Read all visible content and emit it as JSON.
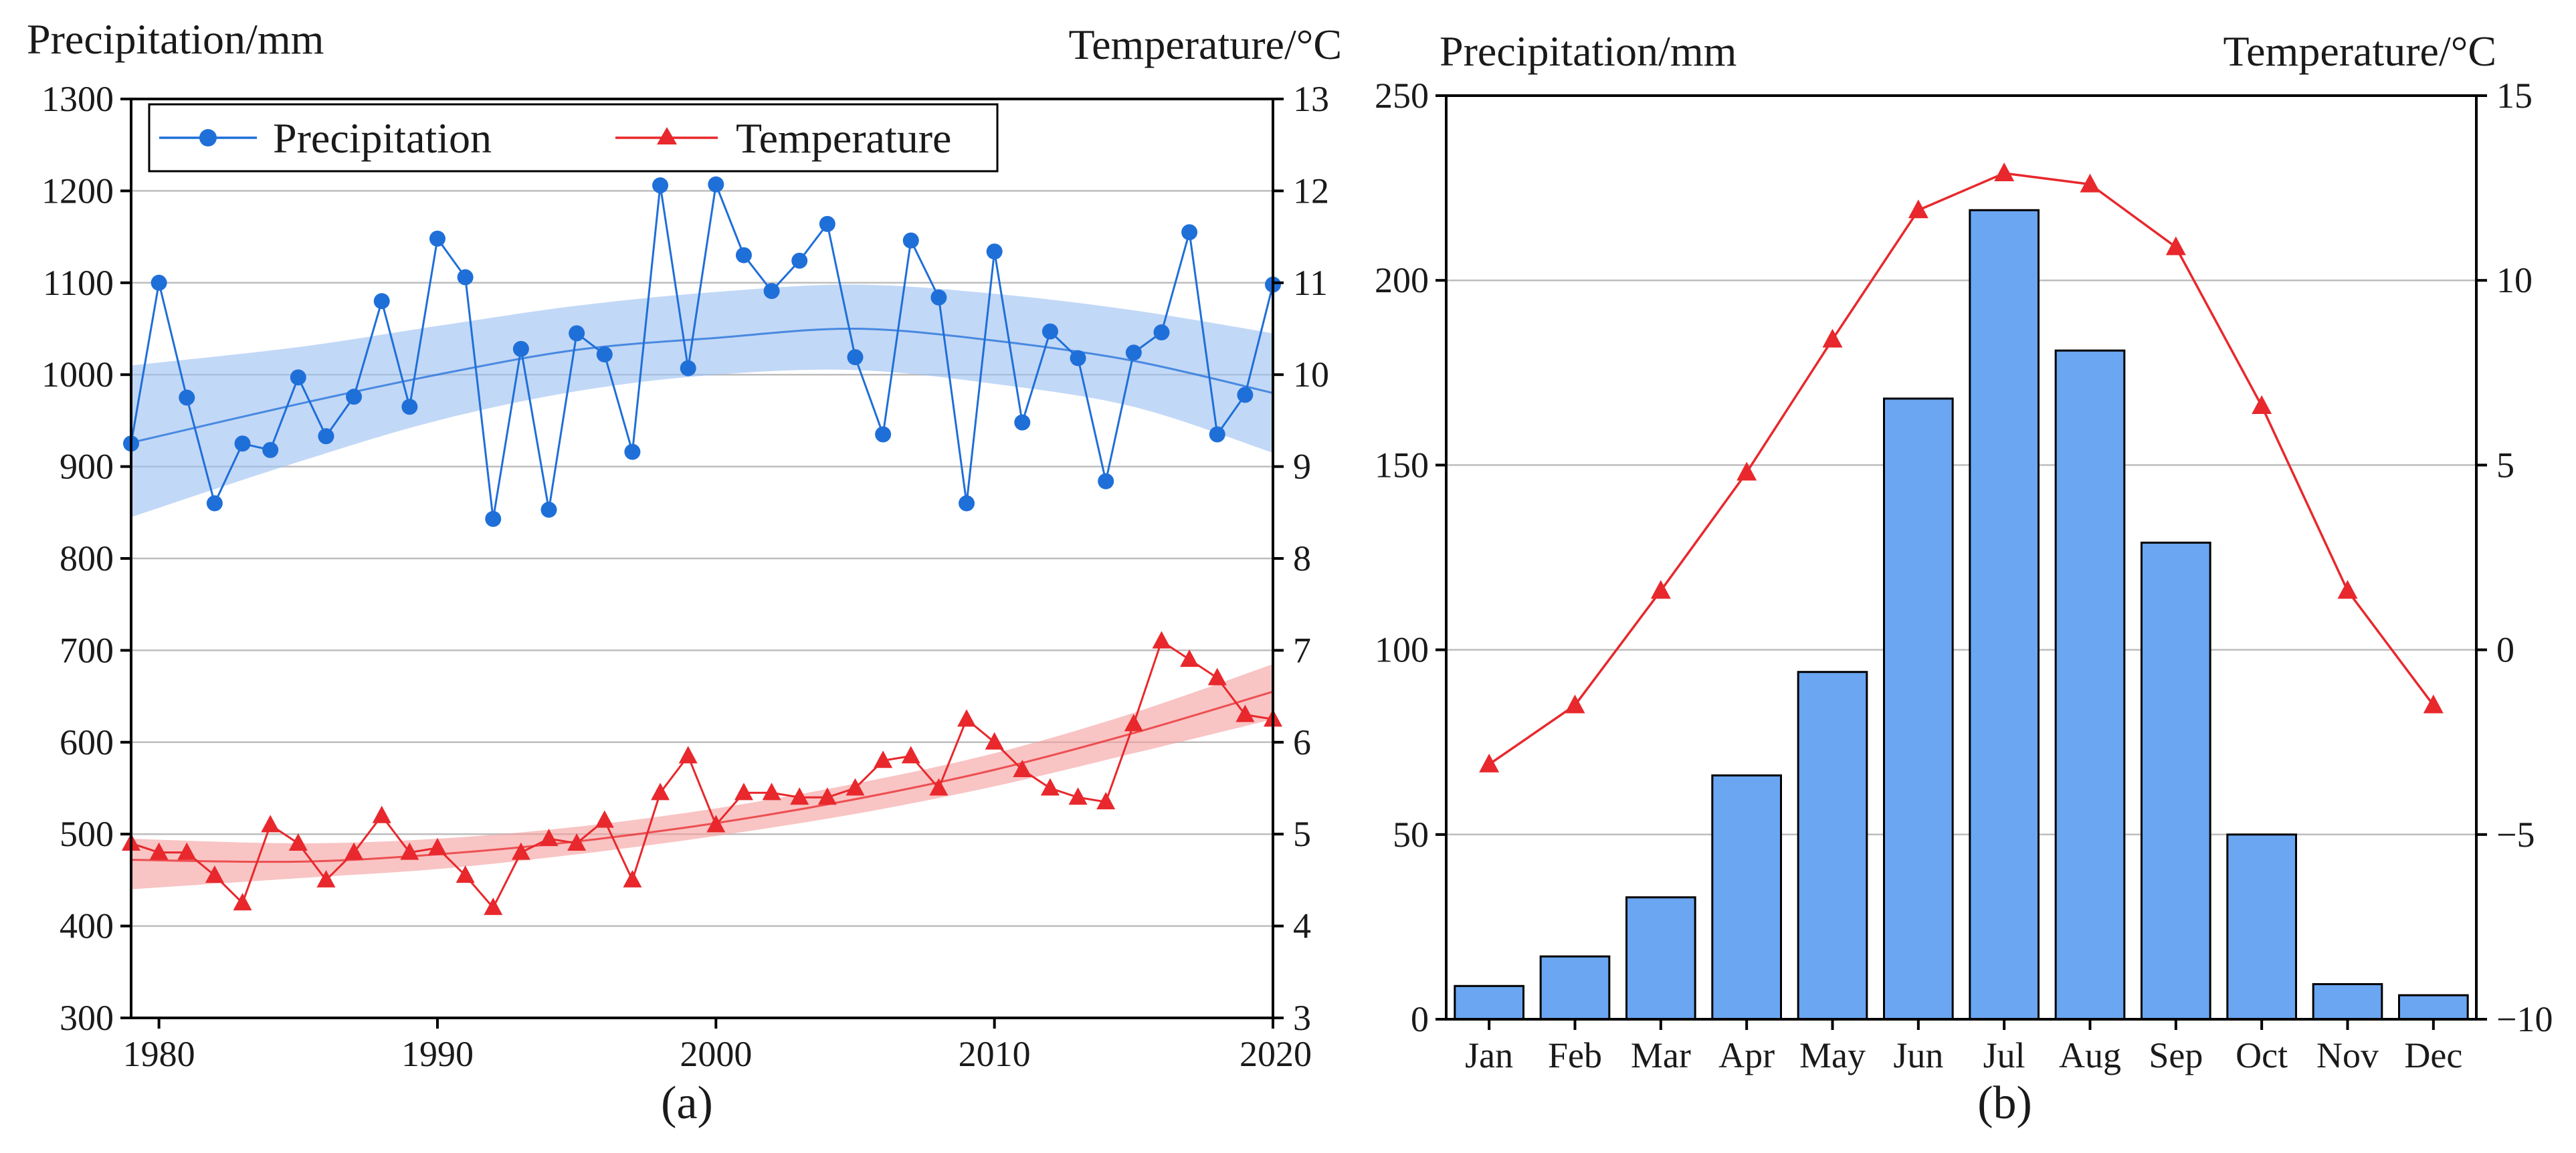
{
  "chart_data": [
    {
      "type": "line",
      "panel_label": "(a)",
      "ylabel_left": "Precipitation/mm",
      "ylabel_right": "Temperature/°C",
      "xlim": [
        1979,
        2020
      ],
      "ylim_left": [
        300,
        1300
      ],
      "ylim_right": [
        3,
        13
      ],
      "x_ticks": [
        "1980",
        "1990",
        "2000",
        "2010",
        "2020"
      ],
      "y_ticks_left": [
        "300",
        "400",
        "500",
        "600",
        "700",
        "800",
        "900",
        "1000",
        "1100",
        "1200",
        "1300"
      ],
      "y_ticks_right": [
        "3",
        "4",
        "5",
        "6",
        "7",
        "8",
        "9",
        "10",
        "11",
        "12",
        "13"
      ],
      "grid": true,
      "legend_position": "top-left",
      "x": [
        1979,
        1980,
        1981,
        1982,
        1983,
        1984,
        1985,
        1986,
        1987,
        1988,
        1989,
        1990,
        1991,
        1992,
        1993,
        1994,
        1995,
        1996,
        1997,
        1998,
        1999,
        2000,
        2001,
        2002,
        2003,
        2004,
        2005,
        2006,
        2007,
        2008,
        2009,
        2010,
        2011,
        2012,
        2013,
        2014,
        2015,
        2016,
        2017,
        2018,
        2019,
        2020
      ],
      "series": [
        {
          "name": "Precipitation",
          "axis": "left",
          "color": "#1f6fd8",
          "marker": "circle",
          "values": [
            925,
            1100,
            975,
            860,
            925,
            918,
            997,
            933,
            976,
            1080,
            965,
            1148,
            1106,
            843,
            1028,
            853,
            1045,
            1022,
            916,
            1206,
            1007,
            1207,
            1130,
            1091,
            1124,
            1164,
            1019,
            935,
            1146,
            1084,
            860,
            1134,
            948,
            1047,
            1018,
            884,
            1024,
            1046,
            1155,
            935,
            978,
            1098
          ],
          "trend": {
            "x": [
              1979,
              1985,
              1990,
              1995,
              2000,
              2005,
              2010,
              2015,
              2020
            ],
            "values": [
              926,
              968,
              1000,
              1027,
              1040,
              1050,
              1037,
              1015,
              980
            ]
          },
          "confidence_band": {
            "x": [
              1979,
              1985,
              1990,
              1995,
              2000,
              2005,
              2010,
              2015,
              2020
            ],
            "upper": [
              1010,
              1030,
              1053,
              1075,
              1090,
              1098,
              1088,
              1070,
              1045
            ],
            "lower": [
              845,
              905,
              950,
              982,
              1000,
              1005,
              990,
              965,
              915
            ]
          }
        },
        {
          "name": "Temperature",
          "axis": "right",
          "color": "#e8282c",
          "marker": "triangle",
          "values": [
            4.9,
            4.8,
            4.8,
            4.55,
            4.25,
            5.1,
            4.9,
            4.5,
            4.8,
            5.2,
            4.8,
            4.85,
            4.55,
            4.2,
            4.8,
            4.95,
            4.9,
            5.15,
            4.5,
            5.45,
            5.85,
            5.1,
            5.45,
            5.45,
            5.4,
            5.4,
            5.5,
            5.8,
            5.85,
            5.5,
            6.25,
            6.0,
            5.7,
            5.5,
            5.4,
            5.35,
            6.2,
            7.1,
            6.9,
            6.7,
            6.3,
            6.25
          ],
          "trend": {
            "x": [
              1979,
              1985,
              1990,
              1995,
              2000,
              2005,
              2010,
              2015,
              2020
            ],
            "values": [
              4.72,
              4.7,
              4.78,
              4.92,
              5.12,
              5.38,
              5.7,
              6.1,
              6.55
            ]
          },
          "confidence_band": {
            "x": [
              1979,
              1985,
              1990,
              1995,
              2000,
              2005,
              2010,
              2015,
              2020
            ],
            "upper": [
              4.95,
              4.9,
              4.95,
              5.08,
              5.28,
              5.55,
              5.88,
              6.32,
              6.85
            ],
            "lower": [
              4.4,
              4.52,
              4.62,
              4.78,
              4.98,
              5.22,
              5.52,
              5.88,
              6.25
            ]
          }
        }
      ]
    },
    {
      "type": "bar",
      "panel_label": "(b)",
      "ylabel_left": "Precipitation/mm",
      "ylabel_right": "Temperature/°C",
      "categories": [
        "Jan",
        "Feb",
        "Mar",
        "Apr",
        "May",
        "Jun",
        "Jul",
        "Aug",
        "Sep",
        "Oct",
        "Nov",
        "Dec"
      ],
      "ylim_left": [
        0,
        250
      ],
      "ylim_right": [
        -10,
        15
      ],
      "y_ticks_left": [
        "0",
        "50",
        "100",
        "150",
        "200",
        "250"
      ],
      "y_ticks_right": [
        "−10",
        "−5",
        "0",
        "5",
        "10",
        "15"
      ],
      "grid": true,
      "series": [
        {
          "name": "Precipitation",
          "axis": "left",
          "type": "bar",
          "color": "#6aa6f1",
          "values": [
            9,
            17,
            33,
            66,
            94,
            168,
            219,
            181,
            129,
            50,
            9.5,
            6.5
          ]
        },
        {
          "name": "Temperature",
          "axis": "right",
          "type": "line",
          "color": "#e8282c",
          "marker": "triangle",
          "values": [
            -3.1,
            -1.5,
            1.6,
            4.8,
            8.4,
            11.9,
            12.9,
            12.6,
            10.9,
            6.6,
            1.6,
            -1.5
          ]
        }
      ]
    }
  ]
}
